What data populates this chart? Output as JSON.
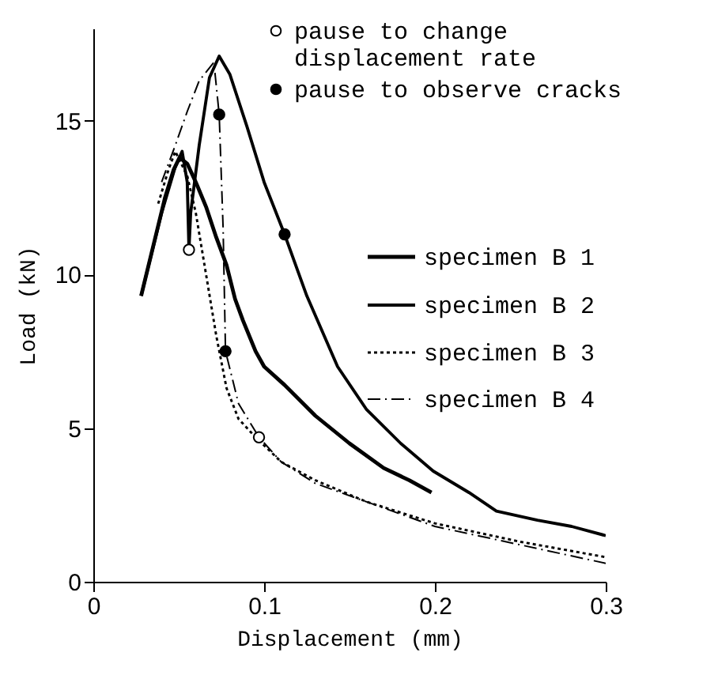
{
  "chart_data": {
    "type": "line",
    "xlabel": "Displacement (mm)",
    "ylabel": "Load (kN)",
    "xlim": [
      0,
      0.3
    ],
    "ylim": [
      0,
      18
    ],
    "xticks": [
      0,
      0.1,
      0.2,
      0.3
    ],
    "yticks": [
      0,
      5,
      10,
      15
    ],
    "grid": false,
    "legend": "right",
    "series": [
      {
        "name": "specimen B 1",
        "color": "#000000",
        "line_style": "solid",
        "x": [
          0.028,
          0.035,
          0.042,
          0.047,
          0.0505,
          0.055,
          0.06,
          0.066,
          0.072,
          0.078,
          0.083,
          0.0876,
          0.095,
          0.1,
          0.112,
          0.13,
          0.15,
          0.17,
          0.185,
          0.198
        ],
        "values": [
          9.3,
          10.9,
          12.5,
          13.4,
          13.8,
          13.6,
          13.0,
          12.2,
          11.2,
          10.3,
          9.2,
          8.5,
          7.5,
          7.0,
          6.4,
          5.4,
          4.5,
          3.7,
          3.3,
          2.9
        ]
      },
      {
        "name": "specimen B 2",
        "color": "#000000",
        "line_style": "solid",
        "x": [
          0.028,
          0.04,
          0.048,
          0.052,
          0.055,
          0.056,
          0.057,
          0.062,
          0.068,
          0.0737,
          0.08,
          0.09,
          0.1,
          0.112,
          0.125,
          0.143,
          0.16,
          0.18,
          0.199,
          0.22,
          0.236,
          0.26,
          0.28,
          0.3
        ],
        "values": [
          9.3,
          12.0,
          13.5,
          14.0,
          13.0,
          10.8,
          12.0,
          14.2,
          16.4,
          17.1,
          16.5,
          14.8,
          13.0,
          11.3,
          9.3,
          7.0,
          5.6,
          4.5,
          3.6,
          2.9,
          2.3,
          2.0,
          1.8,
          1.5
        ]
      },
      {
        "name": "specimen B 3",
        "color": "#000000",
        "line_style": "dotted",
        "x": [
          0.038,
          0.044,
          0.048,
          0.055,
          0.06,
          0.066,
          0.072,
          0.078,
          0.085,
          0.095,
          0.11,
          0.13,
          0.16,
          0.2,
          0.25,
          0.3
        ],
        "values": [
          12.3,
          13.4,
          14.0,
          13.2,
          12.0,
          10.0,
          8.0,
          6.3,
          5.3,
          4.7,
          3.9,
          3.3,
          2.6,
          1.9,
          1.3,
          0.8
        ]
      },
      {
        "name": "specimen B 4",
        "color": "#000000",
        "line_style": "dashdot",
        "x": [
          0.04,
          0.048,
          0.055,
          0.062,
          0.0706,
          0.0737,
          0.076,
          0.0774,
          0.085,
          0.097,
          0.11,
          0.13,
          0.16,
          0.2,
          0.25,
          0.3
        ],
        "values": [
          13.0,
          14.2,
          15.3,
          16.3,
          16.9,
          15.2,
          11.5,
          7.5,
          5.8,
          4.7,
          3.9,
          3.2,
          2.6,
          1.8,
          1.2,
          0.6
        ]
      },
      {
        "name": "pause to change\ndisplacement rate",
        "type": "scatter",
        "marker": "circle",
        "color": "#ffffff",
        "x": [
          0.056,
          0.097
        ],
        "values": [
          10.8,
          4.7
        ]
      },
      {
        "name": "pause to observe cracks",
        "type": "scatter",
        "marker": "circle",
        "color": "#000000",
        "x": [
          0.0737,
          0.0774,
          0.112
        ],
        "values": [
          15.2,
          7.5,
          11.3
        ]
      }
    ]
  }
}
